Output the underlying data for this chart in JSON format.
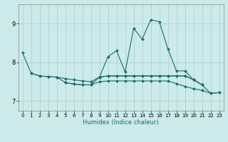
{
  "title": "",
  "xlabel": "Humidex (Indice chaleur)",
  "ylabel": "",
  "bg_color": "#cceaea",
  "grid_color": "#aacccc",
  "line_color": "#1a6b6b",
  "xlim": [
    -0.5,
    23.5
  ],
  "ylim": [
    6.75,
    9.5
  ],
  "xticks": [
    0,
    1,
    2,
    3,
    4,
    5,
    6,
    7,
    8,
    9,
    10,
    11,
    12,
    13,
    14,
    15,
    16,
    17,
    18,
    19,
    20,
    21,
    22,
    23
  ],
  "yticks": [
    7,
    8,
    9
  ],
  "series": [
    [
      8.25,
      7.72,
      7.65,
      7.63,
      7.62,
      7.48,
      7.44,
      7.42,
      7.42,
      7.62,
      8.15,
      8.3,
      7.75,
      8.88,
      8.6,
      9.1,
      9.05,
      8.35,
      7.78,
      7.78,
      7.55,
      7.42,
      7.2,
      7.22
    ],
    [
      null,
      7.72,
      7.65,
      7.63,
      7.62,
      7.58,
      7.55,
      7.52,
      7.5,
      7.62,
      7.65,
      7.65,
      7.65,
      7.65,
      7.65,
      7.65,
      7.65,
      7.65,
      7.65,
      7.65,
      7.55,
      7.42,
      null,
      null
    ],
    [
      null,
      null,
      null,
      null,
      null,
      7.48,
      7.44,
      7.42,
      7.42,
      7.5,
      7.52,
      7.52,
      7.52,
      7.52,
      7.52,
      7.52,
      7.52,
      7.52,
      7.45,
      7.38,
      7.32,
      7.28,
      7.2,
      7.22
    ],
    [
      null,
      null,
      null,
      null,
      null,
      null,
      null,
      null,
      null,
      7.62,
      7.65,
      7.65,
      7.65,
      7.65,
      7.65,
      7.65,
      7.65,
      7.65,
      7.65,
      7.65,
      7.55,
      7.42,
      null,
      null
    ]
  ],
  "xlabel_fontsize": 6.0,
  "tick_fontsize": 5.0,
  "ytick_fontsize": 6.0,
  "linewidth": 0.8,
  "markersize": 2.0
}
